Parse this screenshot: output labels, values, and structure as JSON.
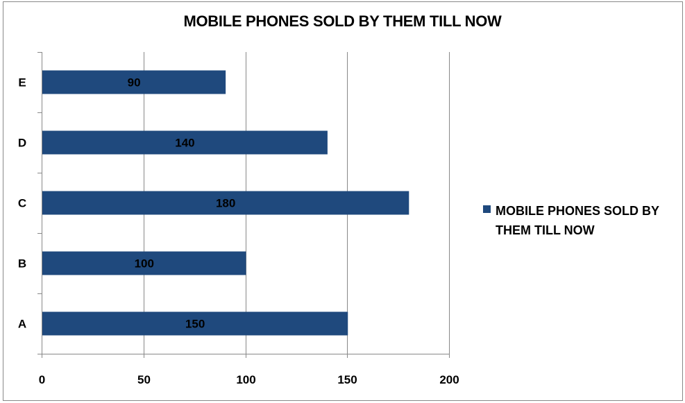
{
  "chart_data": {
    "type": "bar",
    "orientation": "horizontal",
    "title": "MOBILE PHONES SOLD BY THEM TILL NOW",
    "categories": [
      "A",
      "B",
      "C",
      "D",
      "E"
    ],
    "series": [
      {
        "name": "MOBILE PHONES SOLD BY THEM TILL NOW",
        "values": [
          150,
          100,
          180,
          140,
          90
        ]
      }
    ],
    "x_ticks": [
      "0",
      "50",
      "100",
      "150",
      "200"
    ],
    "xlim": [
      0,
      200
    ],
    "grid": "vertical major gridlines",
    "legend_position": "right",
    "colors": {
      "bar": "#1F497D",
      "gridline": "#888888",
      "axis": "#888888"
    }
  }
}
